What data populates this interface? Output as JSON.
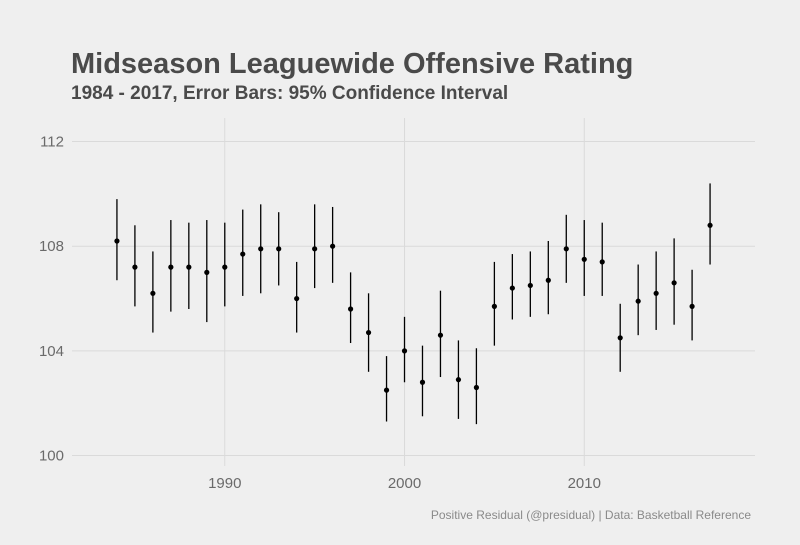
{
  "chart_data": {
    "type": "scatter",
    "title": "Midseason Leaguewide Offensive Rating",
    "subtitle": "1984 - 2017, Error Bars: 95% Confidence Interval",
    "caption": "Positive Residual (@presidual) | Data: Basketball Reference",
    "xlabel": "",
    "ylabel": "",
    "xlim": [
      1981.5,
      2019.5
    ],
    "ylim": [
      99.6,
      112.9
    ],
    "x_ticks": [
      1990,
      2000,
      2010
    ],
    "x_tick_labels": [
      "1990",
      "2000",
      "2010"
    ],
    "y_ticks": [
      100,
      104,
      108,
      112
    ],
    "y_tick_labels": [
      "100",
      "104",
      "108",
      "112"
    ],
    "grid": true,
    "legend": "none",
    "colors": {
      "background": "#efefef",
      "grid": "#dadada",
      "points": "#000000"
    },
    "series": [
      {
        "x": [
          1984,
          1985,
          1986,
          1987,
          1988,
          1989,
          1990,
          1991,
          1992,
          1993,
          1994,
          1995,
          1996,
          1997,
          1998,
          1999,
          2000,
          2001,
          2002,
          2003,
          2004,
          2005,
          2006,
          2007,
          2008,
          2009,
          2010,
          2011,
          2012,
          2013,
          2014,
          2015,
          2016,
          2017
        ],
        "y": [
          108.2,
          107.2,
          106.2,
          107.2,
          107.2,
          107.0,
          107.2,
          107.7,
          107.9,
          107.9,
          106.0,
          107.9,
          108.0,
          105.6,
          104.7,
          102.5,
          104.0,
          102.8,
          104.6,
          102.9,
          102.6,
          105.7,
          106.4,
          106.5,
          106.7,
          107.9,
          107.5,
          107.4,
          104.5,
          105.9,
          106.2,
          106.6,
          105.7,
          108.8
        ],
        "lower": [
          106.7,
          105.7,
          104.7,
          105.5,
          105.6,
          105.1,
          105.7,
          106.1,
          106.2,
          106.5,
          104.7,
          106.4,
          106.6,
          104.3,
          103.2,
          101.3,
          102.8,
          101.5,
          103.0,
          101.4,
          101.2,
          104.2,
          105.2,
          105.3,
          105.4,
          106.6,
          106.1,
          106.1,
          103.2,
          104.6,
          104.8,
          105.0,
          104.4,
          107.3
        ],
        "upper": [
          109.8,
          108.8,
          107.8,
          109.0,
          108.9,
          109.0,
          108.9,
          109.4,
          109.6,
          109.3,
          107.4,
          109.6,
          109.5,
          107.0,
          106.2,
          103.8,
          105.3,
          104.2,
          106.3,
          104.4,
          104.1,
          107.4,
          107.7,
          107.8,
          108.2,
          109.2,
          109.0,
          108.9,
          105.8,
          107.3,
          107.8,
          108.3,
          107.1,
          110.4
        ]
      }
    ]
  }
}
